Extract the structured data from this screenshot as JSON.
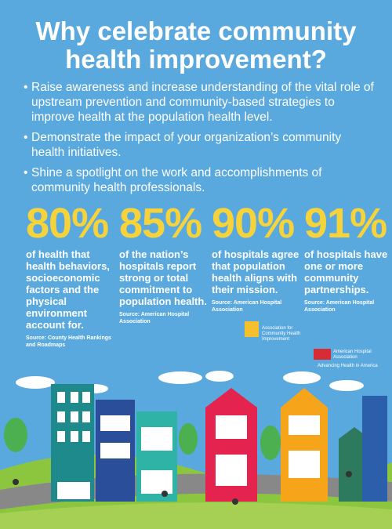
{
  "header": {
    "title": "Why celebrate community health improvement?"
  },
  "bullets": [
    "Raise awareness and increase understanding of the vital role of upstream prevention and community-based strategies to improve health at the population health level.",
    "Demonstrate the impact of your organization’s community health initiatives.",
    "Shine a spotlight on the work and accomplishments of community health professionals."
  ],
  "stats": [
    {
      "figure": "80%",
      "text": "of health that health behaviors, socioeconomic factors and the physical environment account for.",
      "source": "Source: County Health Rankings and Roadmaps"
    },
    {
      "figure": "85%",
      "text": "of the nation’s hospitals report strong or total commitment to population health.",
      "source": "Source: American Hospital Association"
    },
    {
      "figure": "90%",
      "text": "of hospitals agree that population health aligns with their mission.",
      "source": "Source: American Hospital Association"
    },
    {
      "figure": "91%",
      "text": "of hospitals have one or more community partnerships.",
      "source": "Source: American Hospital Association"
    }
  ],
  "logos": {
    "achi": "Association for Community Health Improvement",
    "aha": "American Hospital Association",
    "aha_tagline": "Advancing Health in America"
  }
}
